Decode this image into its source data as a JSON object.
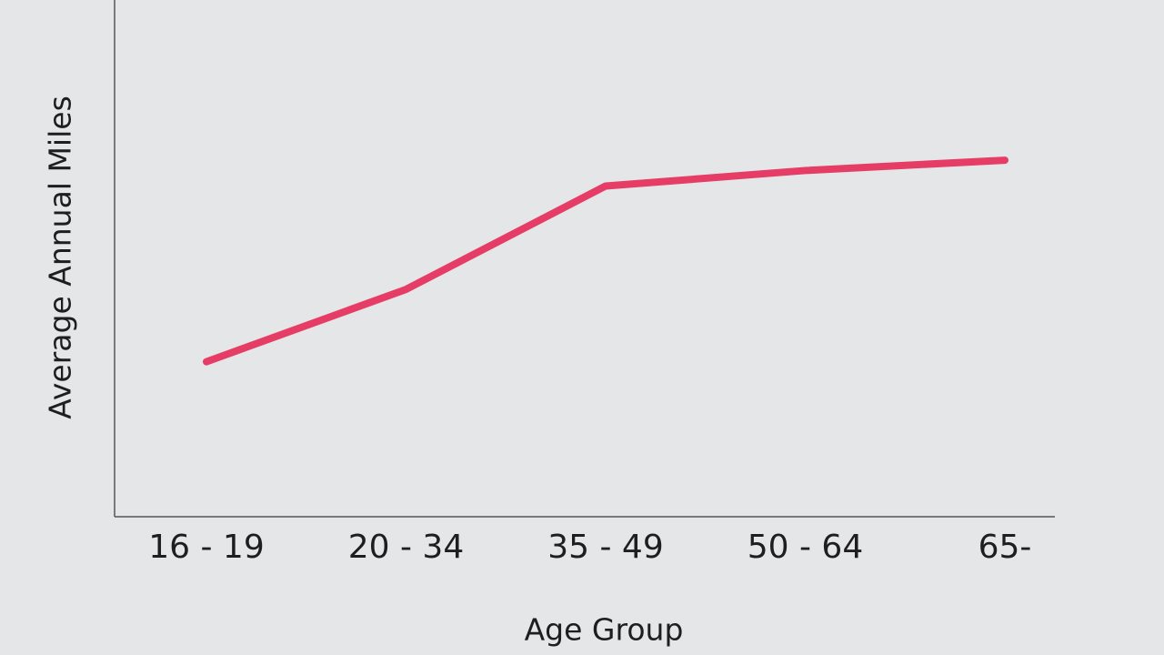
{
  "chart_data": {
    "type": "line",
    "xlabel": "Age Group",
    "ylabel": "Average Annual Miles",
    "categories": [
      "16 - 19",
      "20 - 34",
      "35 - 49",
      "50 - 64",
      "65-"
    ],
    "series": [
      {
        "name": "Average Annual Miles",
        "color": "#e63d67",
        "values": [
          30,
          44,
          64,
          67,
          69
        ]
      }
    ],
    "ylim": [
      0,
      100
    ]
  }
}
